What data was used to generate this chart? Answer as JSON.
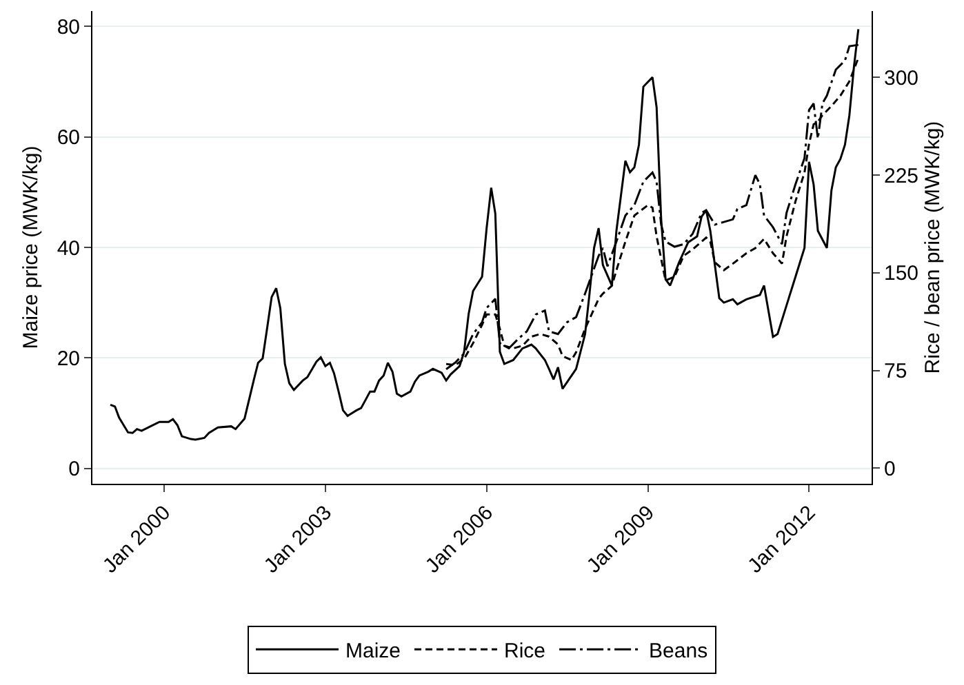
{
  "chart_data": {
    "type": "line",
    "ylabel": "Maize price (MWK/kg)",
    "y2label": "Rice / bean price (MWK/kg)",
    "xlim": [
      "1998-09",
      "2013-03"
    ],
    "xticks": [
      {
        "value": "2000-01",
        "label": "Jan 2000"
      },
      {
        "value": "2003-01",
        "label": "Jan 2003"
      },
      {
        "value": "2006-01",
        "label": "Jan 2006"
      },
      {
        "value": "2009-01",
        "label": "Jan 2009"
      },
      {
        "value": "2012-01",
        "label": "Jan 2012"
      }
    ],
    "ylim": [
      -2.8,
      82.8
    ],
    "yticks": [
      0,
      20,
      40,
      60,
      80
    ],
    "y2lim": [
      -12,
      351
    ],
    "y2ticks": [
      0,
      75,
      150,
      225,
      300
    ],
    "grid": "y",
    "legend": "bottom",
    "series": [
      {
        "name": "Maize",
        "color": "#000000",
        "line_style": "solid",
        "x": [
          "1999-01",
          "1999-02",
          "1999-03",
          "1999-05",
          "1999-06",
          "1999-07",
          "1999-08",
          "1999-10",
          "1999-12",
          "2000-02",
          "2000-03",
          "2000-04",
          "2000-05",
          "2000-07",
          "2000-08",
          "2000-10",
          "2000-11",
          "2001-01",
          "2001-04",
          "2001-05",
          "2001-07",
          "2001-09",
          "2001-10",
          "2001-11",
          "2001-12",
          "2002-01",
          "2002-02",
          "2002-03",
          "2002-04",
          "2002-05",
          "2002-06",
          "2002-08",
          "2002-09",
          "2002-11",
          "2002-12",
          "2003-01",
          "2003-02",
          "2003-03",
          "2003-04",
          "2003-05",
          "2003-06",
          "2003-08",
          "2003-09",
          "2003-11",
          "2003-12",
          "2004-01",
          "2004-02",
          "2004-03",
          "2004-04",
          "2004-05",
          "2004-06",
          "2004-08",
          "2004-09",
          "2004-10",
          "2004-12",
          "2005-01",
          "2005-03",
          "2005-04",
          "2005-05",
          "2005-07",
          "2005-08",
          "2005-09",
          "2005-10",
          "2005-12",
          "2006-01",
          "2006-02",
          "2006-03",
          "2006-04",
          "2006-05",
          "2006-07",
          "2006-09",
          "2006-11",
          "2006-12",
          "2007-02",
          "2007-03",
          "2007-04",
          "2007-05",
          "2007-06",
          "2007-09",
          "2007-11",
          "2007-12",
          "2008-01",
          "2008-02",
          "2008-03",
          "2008-05",
          "2008-06",
          "2008-08",
          "2008-09",
          "2008-10",
          "2008-11",
          "2008-12",
          "2009-02",
          "2009-03",
          "2009-04",
          "2009-05",
          "2009-06",
          "2009-08",
          "2009-10",
          "2009-12",
          "2010-01",
          "2010-02",
          "2010-03",
          "2010-05",
          "2010-06",
          "2010-08",
          "2010-09",
          "2010-11",
          "2011-02",
          "2011-03",
          "2011-05",
          "2011-06",
          "2011-08",
          "2011-10",
          "2011-12",
          "2012-01",
          "2012-02",
          "2012-03",
          "2012-05",
          "2012-06",
          "2012-07",
          "2012-08",
          "2012-09",
          "2012-10",
          "2012-11",
          "2012-12"
        ],
        "values": [
          11.5,
          11.2,
          9.2,
          6.5,
          6.4,
          7.1,
          6.8,
          7.6,
          8.4,
          8.4,
          8.9,
          7.8,
          5.8,
          5.3,
          5.2,
          5.5,
          6.4,
          7.4,
          7.6,
          7.1,
          9.0,
          15.9,
          19.1,
          19.9,
          25.3,
          31,
          32.6,
          29,
          18.9,
          15.4,
          14.2,
          15.9,
          16.5,
          19.3,
          20.1,
          18.5,
          19.1,
          17.2,
          13.9,
          10.5,
          9.5,
          10.5,
          10.9,
          13.9,
          13.9,
          15.9,
          16.8,
          19.1,
          17.5,
          13.5,
          13.0,
          13.9,
          15.7,
          16.8,
          17.5,
          18.0,
          17.3,
          15.9,
          17.0,
          18.5,
          21.1,
          28,
          32.1,
          34.7,
          43.5,
          50.8,
          46.1,
          21.1,
          18.9,
          19.6,
          21.7,
          22.4,
          21.7,
          19.6,
          18.0,
          16.1,
          18.3,
          14.4,
          18.0,
          24.3,
          31.6,
          39.9,
          43.5,
          36.8,
          33.1,
          43,
          55.7,
          53.6,
          54.5,
          58.6,
          69.1,
          70.8,
          65.4,
          45.1,
          34.2,
          33.1,
          37.3,
          40.9,
          42,
          45.6,
          46.7,
          43,
          30.8,
          30,
          30.6,
          29.7,
          30.6,
          31.4,
          33.1,
          23.8,
          24.3,
          29.5,
          34.7,
          39.9,
          55.5,
          51.4,
          43,
          39.9,
          50.3,
          54.5,
          56,
          58.6,
          63.9,
          72.7,
          79.5
        ]
      },
      {
        "name": "Rice",
        "color": "#000000",
        "line_style": "dashed",
        "axis": "y2",
        "x": [
          "2005-04",
          "2005-06",
          "2005-08",
          "2005-10",
          "2005-12",
          "2006-01",
          "2006-03",
          "2006-04",
          "2006-05",
          "2006-07",
          "2006-09",
          "2006-11",
          "2007-01",
          "2007-03",
          "2007-05",
          "2007-06",
          "2007-08",
          "2007-09",
          "2007-11",
          "2008-02",
          "2008-03",
          "2008-05",
          "2008-06",
          "2008-08",
          "2008-10",
          "2009-01",
          "2009-02",
          "2009-03",
          "2009-05",
          "2009-07",
          "2009-09",
          "2009-11",
          "2010-02",
          "2010-03",
          "2010-04",
          "2010-06",
          "2010-08",
          "2010-11",
          "2011-01",
          "2011-03",
          "2011-05",
          "2011-07",
          "2011-08",
          "2011-10",
          "2011-12",
          "2012-01",
          "2012-02",
          "2012-03",
          "2012-04",
          "2012-06",
          "2012-08",
          "2012-10",
          "2012-12"
        ],
        "values": [
          80,
          79,
          84,
          96,
          110,
          118,
          118,
          107,
          94,
          92,
          94,
          101,
          103,
          101,
          95,
          86,
          83,
          89,
          107,
          130,
          134,
          140,
          152,
          174,
          194,
          202,
          200,
          178,
          144,
          147,
          163,
          168,
          177,
          174,
          158,
          152,
          157,
          165,
          169,
          176,
          165,
          157,
          178,
          205,
          227,
          249,
          264,
          266,
          271,
          278,
          286,
          297,
          315
        ]
      },
      {
        "name": "Beans",
        "color": "#000000",
        "line_style": "dashdot",
        "axis": "y2",
        "x": [
          "2005-04",
          "2005-06",
          "2005-08",
          "2005-10",
          "2005-12",
          "2006-01",
          "2006-03",
          "2006-04",
          "2006-06",
          "2006-08",
          "2006-10",
          "2006-12",
          "2007-02",
          "2007-03",
          "2007-05",
          "2007-07",
          "2007-09",
          "2007-11",
          "2008-02",
          "2008-03",
          "2008-04",
          "2008-06",
          "2008-08",
          "2008-10",
          "2008-12",
          "2009-02",
          "2009-03",
          "2009-04",
          "2009-05",
          "2009-07",
          "2009-09",
          "2009-11",
          "2010-01",
          "2010-02",
          "2010-04",
          "2010-06",
          "2010-08",
          "2010-09",
          "2010-11",
          "2011-01",
          "2011-02",
          "2011-03",
          "2011-05",
          "2011-07",
          "2011-08",
          "2011-10",
          "2011-12",
          "2012-01",
          "2012-02",
          "2012-03",
          "2012-04",
          "2012-05",
          "2012-07",
          "2012-09",
          "2012-10",
          "2012-12"
        ],
        "values": [
          76,
          81,
          88,
          103,
          112,
          123,
          130,
          96,
          92,
          99,
          105,
          118,
          121,
          105,
          103,
          112,
          116,
          134,
          163,
          169,
          155,
          174,
          194,
          202,
          220,
          227,
          220,
          187,
          174,
          170,
          172,
          180,
          196,
          198,
          187,
          189,
          191,
          199,
          202,
          225,
          218,
          194,
          185,
          172,
          196,
          218,
          238,
          275,
          280,
          253,
          280,
          286,
          306,
          313,
          324,
          325
        ]
      }
    ]
  }
}
